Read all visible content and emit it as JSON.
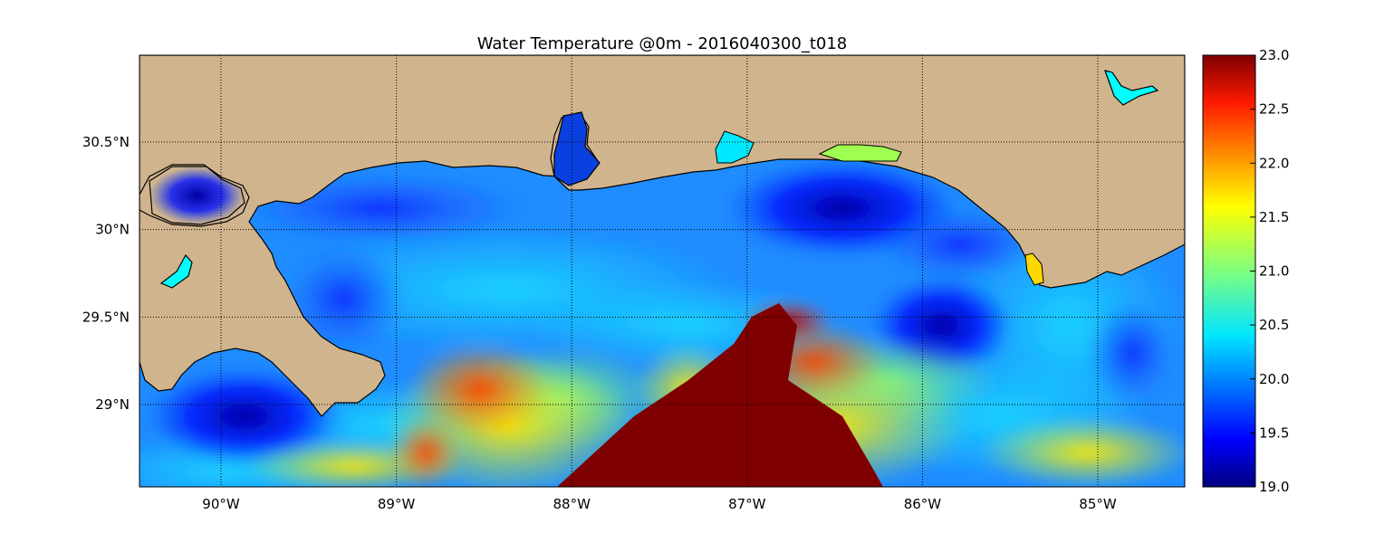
{
  "title": "Water Temperature @0m - 2016040300_t018",
  "map": {
    "lon_range": [
      -90.5,
      -84.5
    ],
    "lat_range": [
      28.55,
      31.0
    ],
    "lon_ticks": [
      {
        "value": -90,
        "label": "90°W"
      },
      {
        "value": -89,
        "label": "89°W"
      },
      {
        "value": -88,
        "label": "88°W"
      },
      {
        "value": -87,
        "label": "87°W"
      },
      {
        "value": -86,
        "label": "86°W"
      },
      {
        "value": -85,
        "label": "85°W"
      }
    ],
    "lat_ticks": [
      {
        "value": 30.5,
        "label": "30.5°N"
      },
      {
        "value": 30.0,
        "label": "30°N"
      },
      {
        "value": 29.5,
        "label": "29.5°N"
      },
      {
        "value": 29.0,
        "label": "29°N"
      }
    ],
    "grid": true,
    "land_color": "#d0b48d",
    "coastline_color": "#000000"
  },
  "colorbar": {
    "min": 19.0,
    "max": 23.0,
    "ticks": [
      "23.0",
      "22.5",
      "22.0",
      "21.5",
      "21.0",
      "20.5",
      "20.0",
      "19.5",
      "19.0"
    ],
    "colormap": "jet",
    "colors": [
      "#00007f",
      "#0000ff",
      "#007fff",
      "#00ffff",
      "#7fff7f",
      "#ffff00",
      "#ff7f00",
      "#ff0000",
      "#7f0000"
    ]
  }
}
